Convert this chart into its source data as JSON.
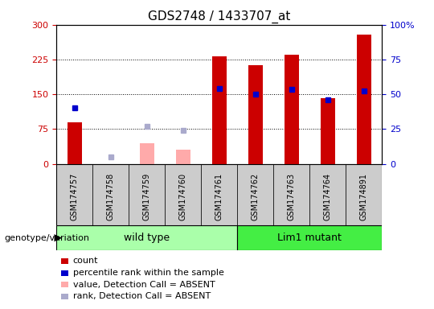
{
  "title": "GDS2748 / 1433707_at",
  "samples": [
    "GSM174757",
    "GSM174758",
    "GSM174759",
    "GSM174760",
    "GSM174761",
    "GSM174762",
    "GSM174763",
    "GSM174764",
    "GSM174891"
  ],
  "count_values": [
    90,
    2,
    3,
    3,
    232,
    213,
    235,
    142,
    278
  ],
  "rank_values": [
    120,
    null,
    null,
    null,
    163,
    150,
    160,
    138,
    158
  ],
  "absent_value": [
    null,
    null,
    45,
    30,
    null,
    null,
    null,
    null,
    null
  ],
  "absent_rank": [
    null,
    15,
    80,
    72,
    null,
    null,
    null,
    null,
    null
  ],
  "is_absent": [
    false,
    true,
    true,
    true,
    false,
    false,
    false,
    false,
    false
  ],
  "ylim_left": [
    0,
    300
  ],
  "ylim_right": [
    0,
    100
  ],
  "yticks_left": [
    0,
    75,
    150,
    225,
    300
  ],
  "yticks_right": [
    0,
    25,
    50,
    75,
    100
  ],
  "bar_color_red": "#cc0000",
  "bar_color_pink": "#ffaaaa",
  "dot_color_blue": "#0000cc",
  "dot_color_lightblue": "#aaaacc",
  "bg_color_xticklabel": "#cccccc",
  "bg_color_wildtype": "#aaffaa",
  "bg_color_lim1": "#44ee44",
  "legend_items": [
    "count",
    "percentile rank within the sample",
    "value, Detection Call = ABSENT",
    "rank, Detection Call = ABSENT"
  ],
  "legend_colors": [
    "#cc0000",
    "#0000cc",
    "#ffaaaa",
    "#aaaacc"
  ],
  "genotype_label": "genotype/variation",
  "wildtype_label": "wild type",
  "lim1_label": "Lim1 mutant",
  "title_fontsize": 11,
  "tick_fontsize": 8,
  "legend_fontsize": 8,
  "genotype_fontsize": 8
}
